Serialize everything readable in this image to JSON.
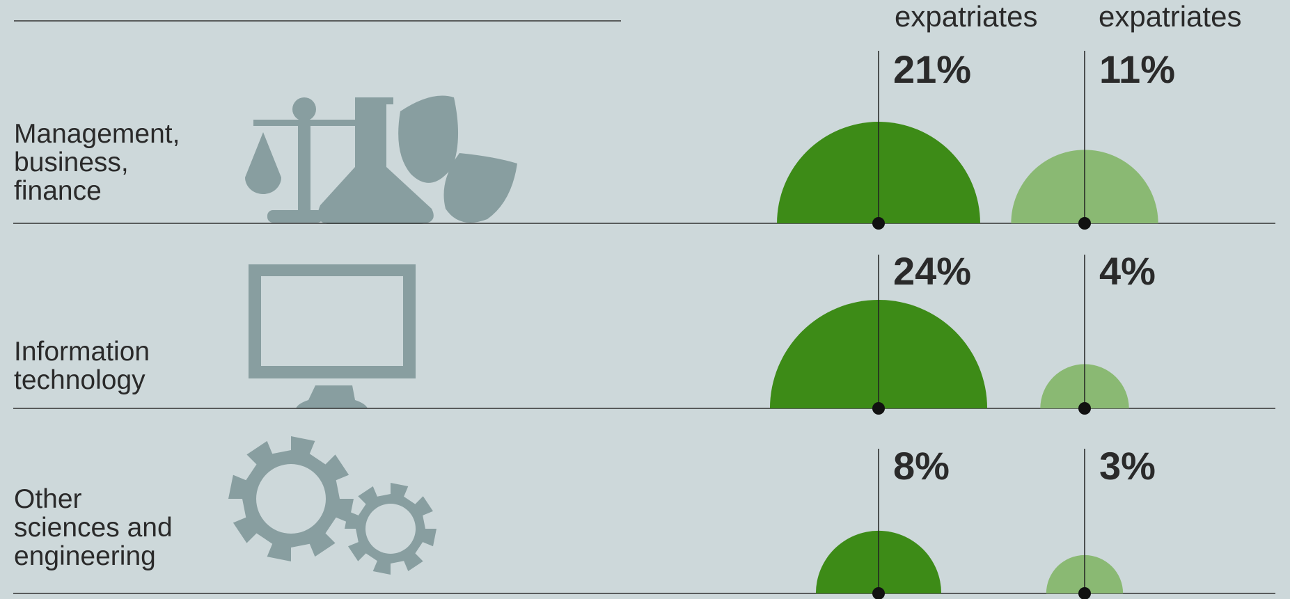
{
  "chart_data": {
    "type": "semicircle",
    "categories": [
      "Management,\nbusiness,\nfinance",
      "Information\ntechnology",
      "Other\nsciences and\nengineering"
    ],
    "series": [
      {
        "name": "expatriates",
        "color": "#3d8b17",
        "values": [
          21,
          24,
          8
        ],
        "value_labels": [
          "21%",
          "24%",
          "8%"
        ]
      },
      {
        "name": "expatriates",
        "color": "#8ab973",
        "values": [
          11,
          4,
          3
        ],
        "value_labels": [
          "11%",
          "4%",
          "3%"
        ]
      }
    ]
  }
}
